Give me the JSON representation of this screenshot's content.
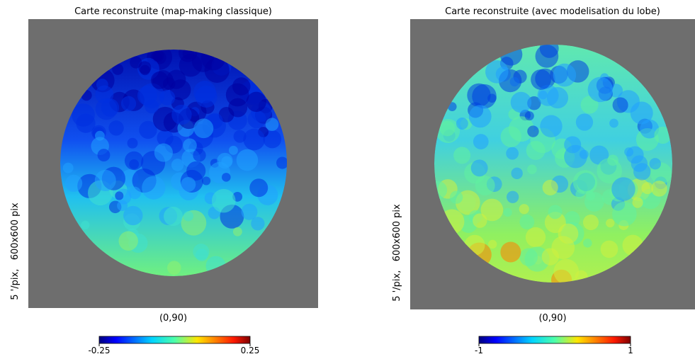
{
  "chart_data": [
    {
      "type": "image",
      "title": "Carte reconstruite (map-making classique)",
      "ylabel": "5 '/pix,   600x600 pix",
      "xlabel": "(0,90)",
      "colorbar": {
        "lim": [
          -0.25,
          0.25
        ],
        "ticks": [
          -0.25,
          0.25
        ]
      }
    },
    {
      "type": "image",
      "title": "Carte reconstruite (avec modelisation du lobe)",
      "ylabel": "5 '/pix,   600x600 pix",
      "xlabel": "(0,90)",
      "colorbar": {
        "lim": [
          -1,
          1
        ],
        "ticks": [
          -1,
          1
        ]
      }
    }
  ]
}
